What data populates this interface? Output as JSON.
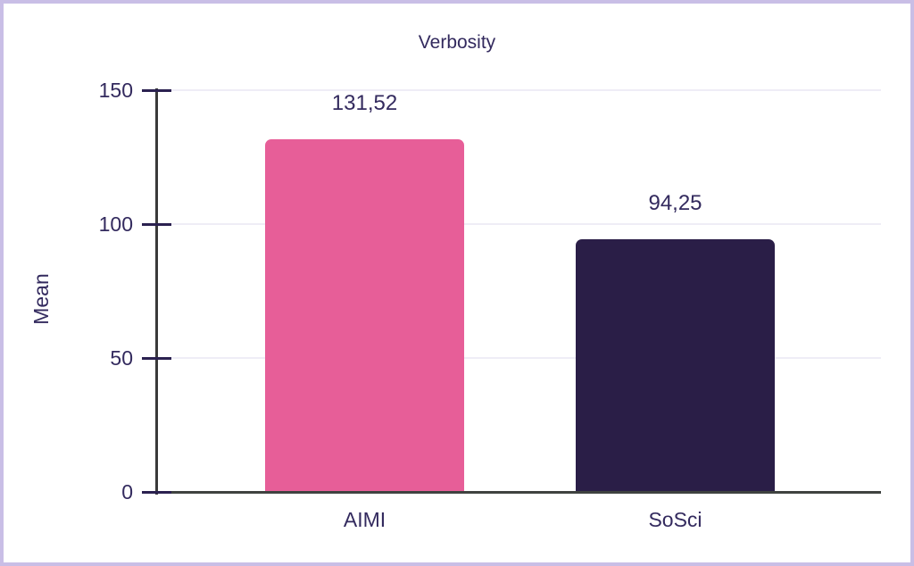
{
  "frame": {
    "border_color": "#c9bee6",
    "background_color": "#ffffff"
  },
  "chart_data": {
    "type": "bar",
    "title": "Verbosity",
    "xlabel": "",
    "ylabel": "Mean",
    "categories": [
      "AIMI",
      "SoSci"
    ],
    "values": [
      131.52,
      94.25
    ],
    "value_labels": [
      "131,52",
      "94,25"
    ],
    "bar_colors": [
      "#e75e98",
      "#2a1e47"
    ],
    "ylim": [
      0,
      150
    ],
    "yticks": [
      0,
      50,
      100,
      150
    ],
    "grid": "horizontal",
    "legend": "none",
    "text_color": "#332a5e",
    "grid_color": "#efedf6",
    "axis_color": "#3a3a3a",
    "tick_color": "#2b2150"
  }
}
